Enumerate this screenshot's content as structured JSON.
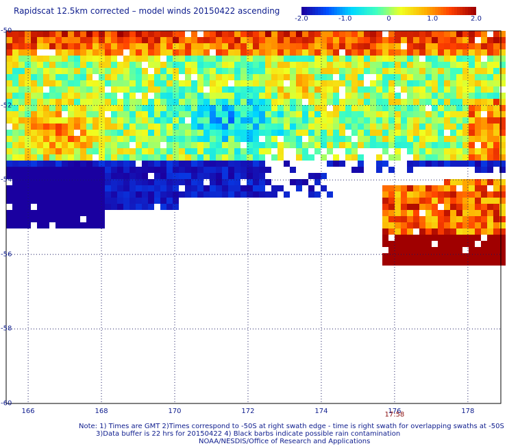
{
  "title": "Rapidscat 12.5km corrected – model winds 20150422 ascending",
  "colorbar": {
    "labels": [
      "-2.0",
      "-1.0",
      "0",
      "1.0",
      "2.0"
    ],
    "values": [
      -2.0,
      -1.0,
      0,
      1.0,
      2.0
    ],
    "colors": [
      "#1a00a0",
      "#0050ff",
      "#00d8ff",
      "#40ffc0",
      "#f0ff20",
      "#ffb000",
      "#ff4000",
      "#a00000"
    ]
  },
  "map": {
    "lon_labels": [
      "166",
      "168",
      "170",
      "172",
      "174",
      "176",
      "178"
    ],
    "lon_values": [
      166,
      168,
      170,
      172,
      174,
      176,
      178
    ],
    "lat_labels": [
      "-50",
      "-52",
      "-54",
      "-56",
      "-58",
      "-60"
    ],
    "lat_values": [
      -50,
      -52,
      -54,
      -56,
      -58,
      -60
    ],
    "lon_range": [
      165.4,
      178.9
    ],
    "lat_range": [
      -50,
      -60
    ],
    "grid": true,
    "time_label": "17:58",
    "time_label_lon": 176
  },
  "notes": {
    "line1": "Note: 1) Times are GMT 2)Times correspond to -50S at right swath edge - time is right swath for overlapping swaths at -50S",
    "line2": "3)Data buffer is 22 hrs for 20150422 4) Black barbs indicate possible rain contamination",
    "line3": "NOAA/NESDIS/Office of Research and Applications"
  }
}
